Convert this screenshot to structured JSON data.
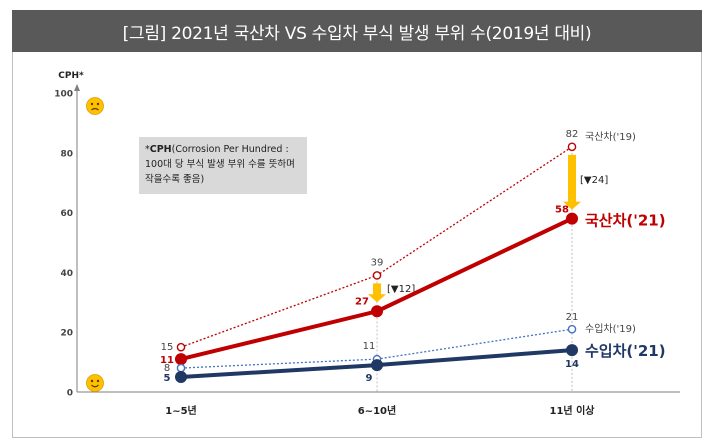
{
  "title": "[그림] 2021년 국산차 VS 수입차 부식 발생 부위 수(2019년 대비)",
  "note": {
    "prefix": "*",
    "term": "CPH",
    "text": "(Corrosion Per Hundred : 100대 당 부식 발생 부위 수를 뜻하며 작을수록 좋음)"
  },
  "colors": {
    "domestic": "#c00000",
    "imported": "#1f3864",
    "arrow": "#ffc000"
  },
  "icons": {
    "top": "frown-face-icon",
    "bottom": "smile-face-icon"
  },
  "chart_data": {
    "type": "line",
    "ylabel": "CPH*",
    "ylim": [
      0,
      100
    ],
    "yticks": [
      0,
      20,
      40,
      60,
      80,
      100
    ],
    "categories": [
      "1~5년",
      "6~10년",
      "11년 이상"
    ],
    "series": [
      {
        "name": "국산차('19)",
        "values": [
          15,
          39,
          82
        ],
        "color": "#c00000",
        "style": "dotted",
        "marker": "open"
      },
      {
        "name": "국산차('21)",
        "values": [
          11,
          27,
          58
        ],
        "color": "#c00000",
        "style": "solid",
        "marker": "filled"
      },
      {
        "name": "수입차('19)",
        "values": [
          8,
          11,
          21
        ],
        "color": "#4472c4",
        "style": "dotted",
        "marker": "open"
      },
      {
        "name": "수입차('21)",
        "values": [
          5,
          9,
          14
        ],
        "color": "#1f3864",
        "style": "solid",
        "marker": "filled"
      }
    ],
    "annotations": [
      {
        "category": "6~10년",
        "text": "[▼12]"
      },
      {
        "category": "11년 이상",
        "text": "[▼24]"
      }
    ]
  }
}
